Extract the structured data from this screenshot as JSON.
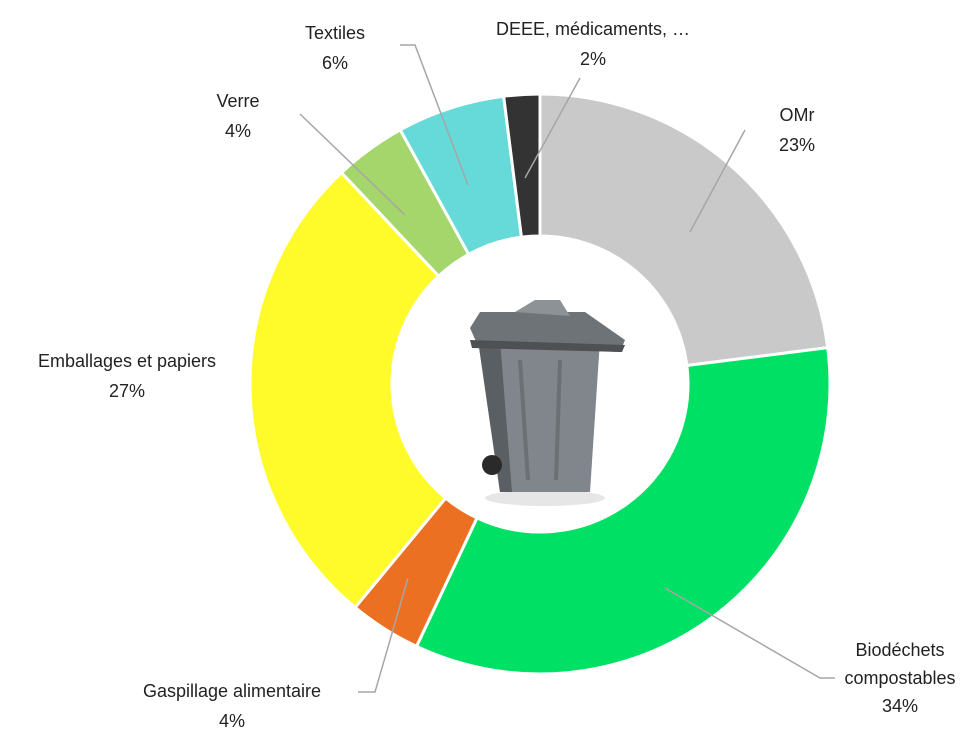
{
  "chart_data": {
    "type": "pie",
    "donut": true,
    "categories": [
      "OMr",
      "Biodéchets compostables",
      "Gaspillage alimentaire",
      "Emballages et papiers",
      "Verre",
      "Textiles",
      "DEEE, médicaments, …"
    ],
    "values": [
      23,
      34,
      4,
      27,
      4,
      6,
      2
    ],
    "value_labels": [
      "23%",
      "34%",
      "4%",
      "27%",
      "4%",
      "6%",
      "2%"
    ],
    "colors": [
      "#c9c9c9",
      "#00e064",
      "#eb7021",
      "#fffb2a",
      "#a5d66b",
      "#66d9d9",
      "#333333"
    ]
  }
}
